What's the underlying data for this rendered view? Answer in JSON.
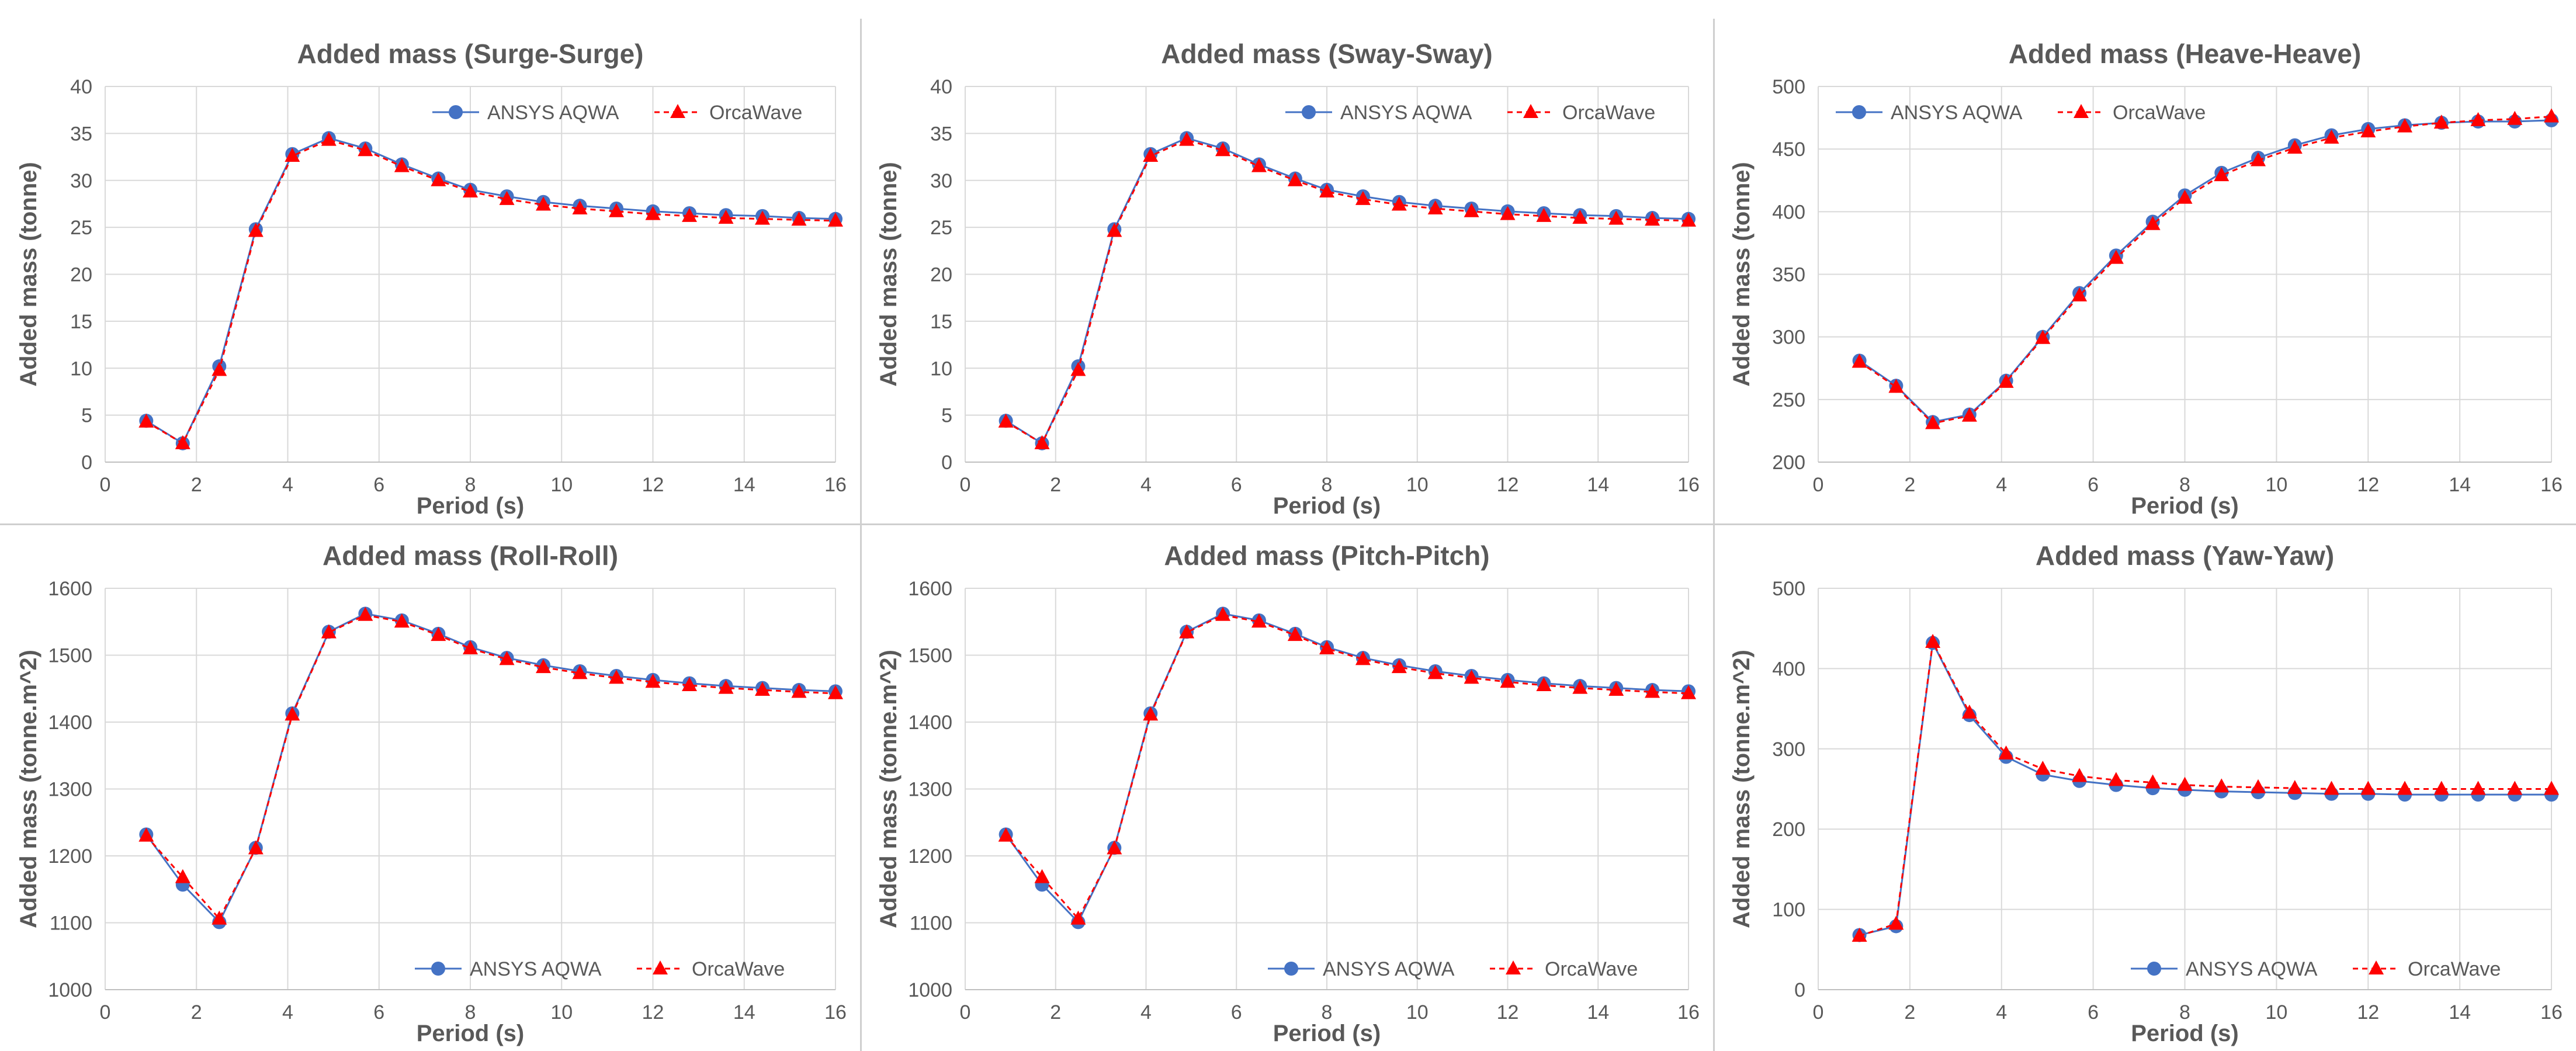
{
  "colors": {
    "aqwa": "#4472C4",
    "orcawave": "#FF0000",
    "grid": "#d9d9d9",
    "text": "#595959",
    "divider": "#cfcfcf"
  },
  "chart_data": [
    {
      "type": "line",
      "title": "Added mass (Surge-Surge)",
      "xlabel": "Period (s)",
      "ylabel": "Added mass (tonne)",
      "xlim": [
        0,
        16
      ],
      "ylim": [
        0,
        40
      ],
      "xticks": [
        0,
        2,
        4,
        6,
        8,
        10,
        12,
        14,
        16
      ],
      "yticks": [
        0,
        5,
        10,
        15,
        20,
        25,
        30,
        35,
        40
      ],
      "legend": "top-right",
      "x": [
        0.9,
        1.7,
        2.5,
        3.3,
        4.1,
        4.9,
        5.7,
        6.5,
        7.3,
        8.0,
        8.8,
        9.6,
        10.4,
        11.2,
        12.0,
        12.8,
        13.6,
        14.4,
        15.2,
        16.0
      ],
      "series": [
        {
          "name": "ANSYS AQWA",
          "values": [
            4.4,
            2.0,
            10.2,
            24.8,
            32.8,
            34.5,
            33.4,
            31.7,
            30.2,
            29.0,
            28.3,
            27.7,
            27.3,
            27.0,
            26.7,
            26.5,
            26.3,
            26.2,
            26.0,
            25.9
          ]
        },
        {
          "name": "OrcaWave",
          "values": [
            4.3,
            2.0,
            9.8,
            24.6,
            32.6,
            34.3,
            33.2,
            31.5,
            30.0,
            28.8,
            28.0,
            27.4,
            27.0,
            26.7,
            26.4,
            26.2,
            26.0,
            25.9,
            25.8,
            25.7
          ]
        }
      ]
    },
    {
      "type": "line",
      "title": "Added mass (Sway-Sway)",
      "xlabel": "Period (s)",
      "ylabel": "Added mass (tonne)",
      "xlim": [
        0,
        16
      ],
      "ylim": [
        0,
        40
      ],
      "xticks": [
        0,
        2,
        4,
        6,
        8,
        10,
        12,
        14,
        16
      ],
      "yticks": [
        0,
        5,
        10,
        15,
        20,
        25,
        30,
        35,
        40
      ],
      "legend": "top-right",
      "x": [
        0.9,
        1.7,
        2.5,
        3.3,
        4.1,
        4.9,
        5.7,
        6.5,
        7.3,
        8.0,
        8.8,
        9.6,
        10.4,
        11.2,
        12.0,
        12.8,
        13.6,
        14.4,
        15.2,
        16.0
      ],
      "series": [
        {
          "name": "ANSYS AQWA",
          "values": [
            4.4,
            2.0,
            10.2,
            24.8,
            32.8,
            34.5,
            33.4,
            31.7,
            30.2,
            29.0,
            28.3,
            27.7,
            27.3,
            27.0,
            26.7,
            26.5,
            26.3,
            26.2,
            26.0,
            25.9
          ]
        },
        {
          "name": "OrcaWave",
          "values": [
            4.3,
            2.0,
            9.8,
            24.6,
            32.6,
            34.3,
            33.2,
            31.5,
            30.0,
            28.8,
            28.0,
            27.4,
            27.0,
            26.7,
            26.4,
            26.2,
            26.0,
            25.9,
            25.8,
            25.7
          ]
        }
      ]
    },
    {
      "type": "line",
      "title": "Added mass (Heave-Heave)",
      "xlabel": "Period (s)",
      "ylabel": "Added mass (tonne)",
      "xlim": [
        0,
        16
      ],
      "ylim": [
        200,
        500
      ],
      "xticks": [
        0,
        2,
        4,
        6,
        8,
        10,
        12,
        14,
        16
      ],
      "yticks": [
        200,
        250,
        300,
        350,
        400,
        450,
        500
      ],
      "legend": "top-left",
      "x": [
        0.9,
        1.7,
        2.5,
        3.3,
        4.1,
        4.9,
        5.7,
        6.5,
        7.3,
        8.0,
        8.8,
        9.6,
        10.4,
        11.2,
        12.0,
        12.8,
        13.6,
        14.4,
        15.2,
        16.0
      ],
      "series": [
        {
          "name": "ANSYS AQWA",
          "values": [
            281,
            261,
            232,
            238,
            265,
            300,
            335,
            365,
            392,
            413,
            431,
            443,
            453,
            461,
            466,
            469,
            471,
            472,
            472,
            473
          ]
        },
        {
          "name": "OrcaWave",
          "values": [
            280,
            260,
            231,
            237,
            264,
            299,
            333,
            363,
            390,
            411,
            429,
            441,
            451,
            459,
            464,
            468,
            471,
            473,
            474,
            476
          ]
        }
      ]
    },
    {
      "type": "line",
      "title": "Added mass (Roll-Roll)",
      "xlabel": "Period (s)",
      "ylabel": "Added mass (tonne.m^2)",
      "xlim": [
        0,
        16
      ],
      "ylim": [
        1000,
        1600
      ],
      "xticks": [
        0,
        2,
        4,
        6,
        8,
        10,
        12,
        14,
        16
      ],
      "yticks": [
        1000,
        1100,
        1200,
        1300,
        1400,
        1500,
        1600
      ],
      "legend": "bottom-right",
      "x": [
        0.9,
        1.7,
        2.5,
        3.3,
        4.1,
        4.9,
        5.7,
        6.5,
        7.3,
        8.0,
        8.8,
        9.6,
        10.4,
        11.2,
        12.0,
        12.8,
        13.6,
        14.4,
        15.2,
        16.0
      ],
      "series": [
        {
          "name": "ANSYS AQWA",
          "values": [
            1232,
            1157,
            1101,
            1212,
            1413,
            1535,
            1562,
            1552,
            1532,
            1512,
            1496,
            1485,
            1476,
            1469,
            1463,
            1458,
            1454,
            1451,
            1448,
            1446
          ]
        },
        {
          "name": "OrcaWave",
          "values": [
            1230,
            1168,
            1106,
            1211,
            1411,
            1534,
            1560,
            1550,
            1530,
            1510,
            1494,
            1482,
            1473,
            1466,
            1460,
            1455,
            1451,
            1448,
            1445,
            1443
          ]
        }
      ]
    },
    {
      "type": "line",
      "title": "Added mass (Pitch-Pitch)",
      "xlabel": "Period (s)",
      "ylabel": "Added mass (tonne.m^2)",
      "xlim": [
        0,
        16
      ],
      "ylim": [
        1000,
        1600
      ],
      "xticks": [
        0,
        2,
        4,
        6,
        8,
        10,
        12,
        14,
        16
      ],
      "yticks": [
        1000,
        1100,
        1200,
        1300,
        1400,
        1500,
        1600
      ],
      "legend": "bottom-right",
      "x": [
        0.9,
        1.7,
        2.5,
        3.3,
        4.1,
        4.9,
        5.7,
        6.5,
        7.3,
        8.0,
        8.8,
        9.6,
        10.4,
        11.2,
        12.0,
        12.8,
        13.6,
        14.4,
        15.2,
        16.0
      ],
      "series": [
        {
          "name": "ANSYS AQWA",
          "values": [
            1232,
            1157,
            1101,
            1212,
            1413,
            1535,
            1562,
            1552,
            1532,
            1512,
            1496,
            1485,
            1476,
            1469,
            1463,
            1458,
            1454,
            1451,
            1448,
            1446
          ]
        },
        {
          "name": "OrcaWave",
          "values": [
            1230,
            1168,
            1106,
            1211,
            1411,
            1534,
            1560,
            1550,
            1530,
            1510,
            1494,
            1482,
            1473,
            1466,
            1460,
            1455,
            1451,
            1448,
            1445,
            1443
          ]
        }
      ]
    },
    {
      "type": "line",
      "title": "Added mass (Yaw-Yaw)",
      "xlabel": "Period (s)",
      "ylabel": "Added mass (tonne.m^2)",
      "xlim": [
        0,
        16
      ],
      "ylim": [
        0,
        500
      ],
      "xticks": [
        0,
        2,
        4,
        6,
        8,
        10,
        12,
        14,
        16
      ],
      "yticks": [
        0,
        100,
        200,
        300,
        400,
        500
      ],
      "legend": "bottom-right",
      "x": [
        0.9,
        1.7,
        2.5,
        3.3,
        4.1,
        4.9,
        5.7,
        6.5,
        7.3,
        8.0,
        8.8,
        9.6,
        10.4,
        11.2,
        12.0,
        12.8,
        13.6,
        14.4,
        15.2,
        16.0
      ],
      "series": [
        {
          "name": "ANSYS AQWA",
          "values": [
            68,
            79,
            432,
            342,
            290,
            268,
            260,
            255,
            251,
            249,
            247,
            246,
            245,
            244,
            244,
            243,
            243,
            243,
            243,
            243
          ]
        },
        {
          "name": "OrcaWave",
          "values": [
            67,
            82,
            433,
            345,
            294,
            275,
            266,
            261,
            258,
            255,
            253,
            252,
            251,
            250,
            250,
            250,
            250,
            250,
            250,
            250
          ]
        }
      ]
    }
  ]
}
